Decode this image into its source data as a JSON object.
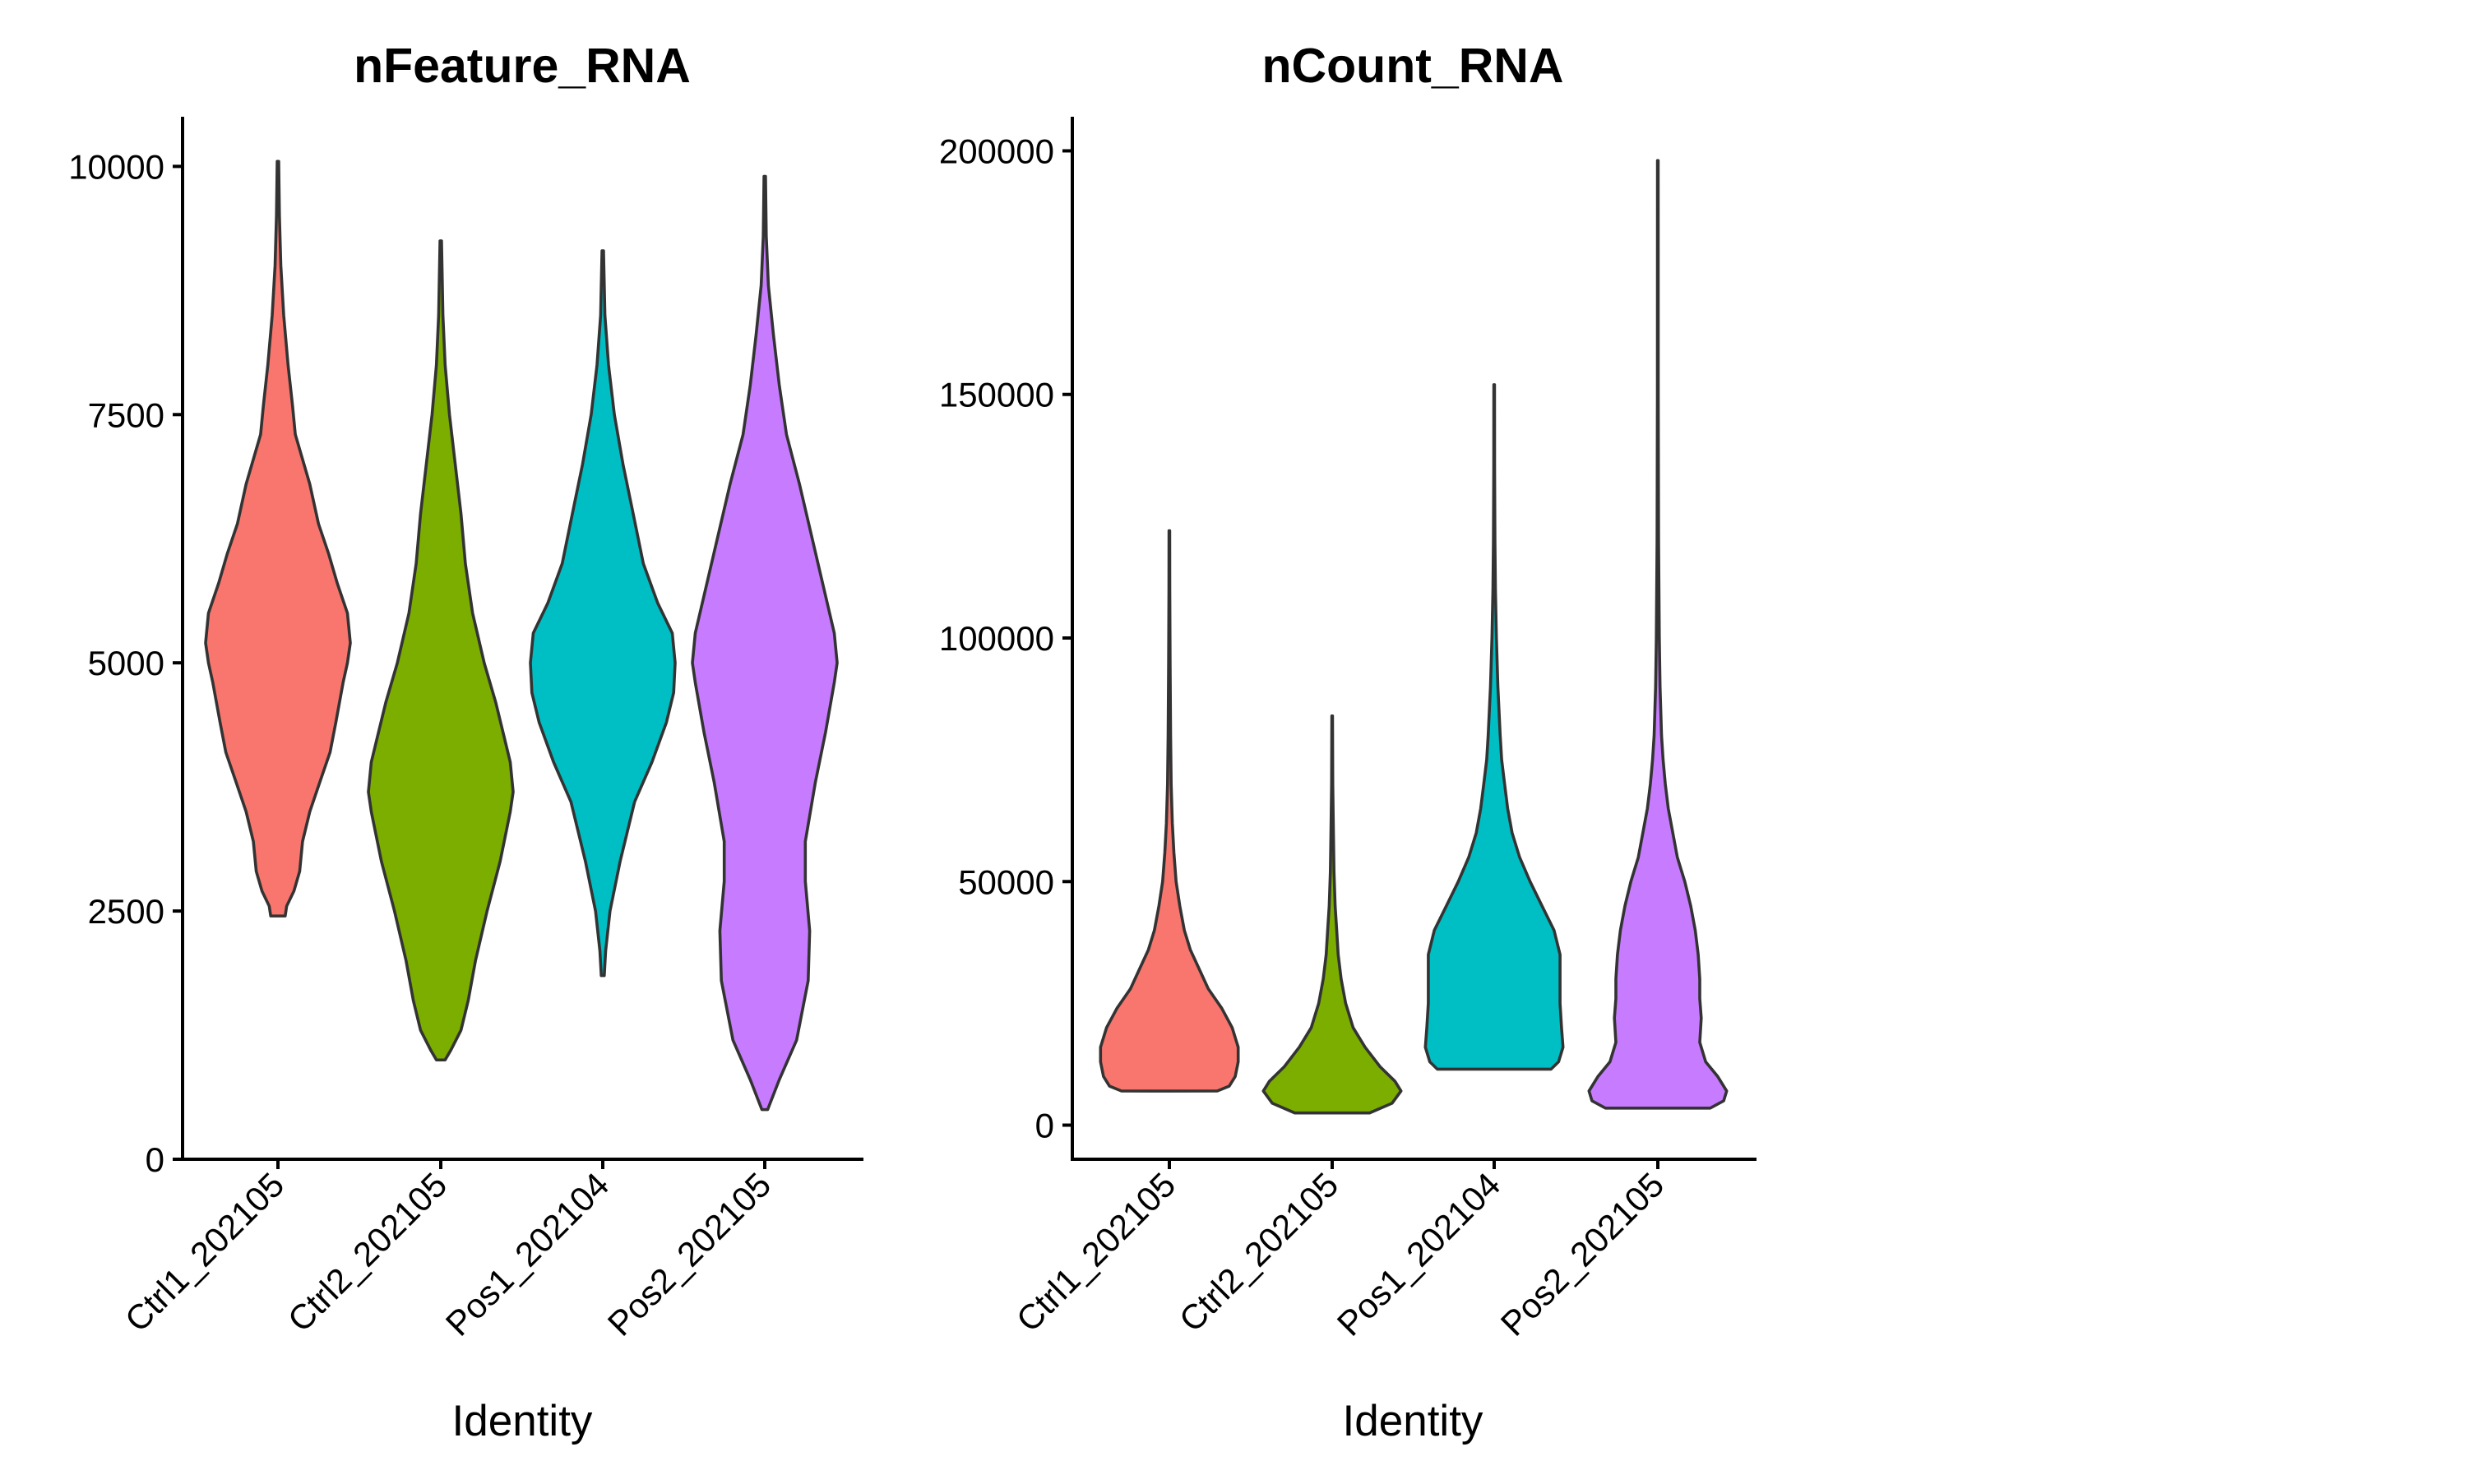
{
  "chart_data": [
    {
      "type": "violin",
      "title": "nFeature_RNA",
      "xlabel": "Identity",
      "ylabel": "",
      "ylim": [
        0,
        10500
      ],
      "yticks": [
        0,
        2500,
        5000,
        7500,
        10000
      ],
      "ytick_labels": [
        "0",
        "2500",
        "5000",
        "7500",
        "10000"
      ],
      "categories": [
        "Ctrl1_202105",
        "Ctrl2_202105",
        "Pos1_202104",
        "Pos2_202105"
      ],
      "colors": [
        "#F8766D",
        "#7CAE00",
        "#00BFC4",
        "#C77CFF"
      ],
      "legend": "none",
      "grid": false,
      "series": [
        {
          "min": 2450,
          "max": 10050,
          "density": [
            [
              2450,
              0.05
            ],
            [
              2550,
              0.06
            ],
            [
              2700,
              0.11
            ],
            [
              2900,
              0.15
            ],
            [
              3200,
              0.17
            ],
            [
              3500,
              0.22
            ],
            [
              3800,
              0.29
            ],
            [
              4100,
              0.36
            ],
            [
              4400,
              0.4
            ],
            [
              4800,
              0.45
            ],
            [
              5000,
              0.48
            ],
            [
              5200,
              0.5
            ],
            [
              5500,
              0.48
            ],
            [
              5800,
              0.41
            ],
            [
              6100,
              0.35
            ],
            [
              6400,
              0.28
            ],
            [
              6800,
              0.22
            ],
            [
              7000,
              0.18
            ],
            [
              7300,
              0.12
            ],
            [
              7600,
              0.1
            ],
            [
              8000,
              0.07
            ],
            [
              8500,
              0.04
            ],
            [
              9000,
              0.02
            ],
            [
              9500,
              0.01
            ],
            [
              10050,
              0.005
            ]
          ]
        },
        {
          "min": 1000,
          "max": 9250,
          "density": [
            [
              1000,
              0.03
            ],
            [
              1100,
              0.07
            ],
            [
              1300,
              0.14
            ],
            [
              1600,
              0.19
            ],
            [
              2000,
              0.24
            ],
            [
              2500,
              0.32
            ],
            [
              3000,
              0.41
            ],
            [
              3500,
              0.48
            ],
            [
              3700,
              0.5
            ],
            [
              4000,
              0.48
            ],
            [
              4300,
              0.43
            ],
            [
              4600,
              0.38
            ],
            [
              5000,
              0.3
            ],
            [
              5500,
              0.22
            ],
            [
              6000,
              0.17
            ],
            [
              6500,
              0.14
            ],
            [
              7000,
              0.1
            ],
            [
              7500,
              0.06
            ],
            [
              8000,
              0.03
            ],
            [
              8500,
              0.015
            ],
            [
              9250,
              0.005
            ]
          ]
        },
        {
          "min": 1850,
          "max": 9150,
          "density": [
            [
              1850,
              0.01
            ],
            [
              2100,
              0.02
            ],
            [
              2500,
              0.05
            ],
            [
              3000,
              0.12
            ],
            [
              3600,
              0.22
            ],
            [
              4000,
              0.34
            ],
            [
              4400,
              0.44
            ],
            [
              4700,
              0.49
            ],
            [
              5000,
              0.5
            ],
            [
              5300,
              0.48
            ],
            [
              5600,
              0.38
            ],
            [
              6000,
              0.28
            ],
            [
              6500,
              0.21
            ],
            [
              7000,
              0.14
            ],
            [
              7500,
              0.08
            ],
            [
              8000,
              0.04
            ],
            [
              8500,
              0.015
            ],
            [
              9150,
              0.005
            ]
          ]
        },
        {
          "min": 500,
          "max": 9900,
          "density": [
            [
              500,
              0.02
            ],
            [
              800,
              0.1
            ],
            [
              1200,
              0.22
            ],
            [
              1800,
              0.3
            ],
            [
              2300,
              0.31
            ],
            [
              2800,
              0.28
            ],
            [
              3200,
              0.28
            ],
            [
              3800,
              0.35
            ],
            [
              4300,
              0.42
            ],
            [
              4800,
              0.48
            ],
            [
              5000,
              0.5
            ],
            [
              5300,
              0.48
            ],
            [
              5800,
              0.4
            ],
            [
              6300,
              0.32
            ],
            [
              6800,
              0.24
            ],
            [
              7300,
              0.15
            ],
            [
              7800,
              0.1
            ],
            [
              8300,
              0.06
            ],
            [
              8800,
              0.025
            ],
            [
              9300,
              0.01
            ],
            [
              9900,
              0.005
            ]
          ]
        }
      ]
    },
    {
      "type": "violin",
      "title": "nCount_RNA",
      "xlabel": "Identity",
      "ylabel": "",
      "ylim": [
        -7000,
        207000
      ],
      "yticks": [
        0,
        50000,
        100000,
        150000,
        200000
      ],
      "ytick_labels": [
        "0",
        "50000",
        "100000",
        "150000",
        "200000"
      ],
      "categories": [
        "Ctrl1_202105",
        "Ctrl2_202105",
        "Pos1_202104",
        "Pos2_202105"
      ],
      "colors": [
        "#F8766D",
        "#7CAE00",
        "#00BFC4",
        "#C77CFF"
      ],
      "legend": "none",
      "grid": false,
      "series": [
        {
          "min": 7000,
          "max": 122000,
          "density": [
            [
              7000,
              0.32
            ],
            [
              8000,
              0.4
            ],
            [
              10000,
              0.44
            ],
            [
              13000,
              0.46
            ],
            [
              16000,
              0.46
            ],
            [
              20000,
              0.42
            ],
            [
              24000,
              0.35
            ],
            [
              28000,
              0.26
            ],
            [
              32000,
              0.2
            ],
            [
              36000,
              0.14
            ],
            [
              40000,
              0.1
            ],
            [
              45000,
              0.07
            ],
            [
              50000,
              0.045
            ],
            [
              56000,
              0.03
            ],
            [
              62000,
              0.02
            ],
            [
              70000,
              0.012
            ],
            [
              80000,
              0.008
            ],
            [
              95000,
              0.005
            ],
            [
              110000,
              0.003
            ],
            [
              122000,
              0.002
            ]
          ]
        },
        {
          "min": 2500,
          "max": 84000,
          "density": [
            [
              2500,
              0.25
            ],
            [
              4500,
              0.4
            ],
            [
              7000,
              0.46
            ],
            [
              9000,
              0.42
            ],
            [
              12000,
              0.32
            ],
            [
              16000,
              0.22
            ],
            [
              20000,
              0.14
            ],
            [
              25000,
              0.09
            ],
            [
              30000,
              0.06
            ],
            [
              35000,
              0.04
            ],
            [
              40000,
              0.03
            ],
            [
              45000,
              0.02
            ],
            [
              52000,
              0.012
            ],
            [
              60000,
              0.008
            ],
            [
              70000,
              0.004
            ],
            [
              84000,
              0.002
            ]
          ]
        },
        {
          "min": 11500,
          "max": 152000,
          "density": [
            [
              11500,
              0.38
            ],
            [
              13000,
              0.43
            ],
            [
              16000,
              0.46
            ],
            [
              20000,
              0.45
            ],
            [
              25000,
              0.44
            ],
            [
              30000,
              0.44
            ],
            [
              35000,
              0.44
            ],
            [
              40000,
              0.4
            ],
            [
              45000,
              0.32
            ],
            [
              50000,
              0.24
            ],
            [
              55000,
              0.17
            ],
            [
              60000,
              0.12
            ],
            [
              65000,
              0.09
            ],
            [
              70000,
              0.07
            ],
            [
              75000,
              0.05
            ],
            [
              80000,
              0.04
            ],
            [
              90000,
              0.025
            ],
            [
              100000,
              0.015
            ],
            [
              110000,
              0.008
            ],
            [
              120000,
              0.005
            ],
            [
              135000,
              0.003
            ],
            [
              152000,
              0.002
            ]
          ]
        },
        {
          "min": 3500,
          "max": 198000,
          "density": [
            [
              3500,
              0.35
            ],
            [
              5000,
              0.44
            ],
            [
              7000,
              0.46
            ],
            [
              10000,
              0.4
            ],
            [
              13000,
              0.32
            ],
            [
              17000,
              0.28
            ],
            [
              22000,
              0.29
            ],
            [
              26000,
              0.28
            ],
            [
              30000,
              0.28
            ],
            [
              35000,
              0.27
            ],
            [
              40000,
              0.25
            ],
            [
              45000,
              0.22
            ],
            [
              50000,
              0.18
            ],
            [
              55000,
              0.13
            ],
            [
              60000,
              0.1
            ],
            [
              65000,
              0.07
            ],
            [
              70000,
              0.05
            ],
            [
              75000,
              0.035
            ],
            [
              80000,
              0.025
            ],
            [
              90000,
              0.015
            ],
            [
              100000,
              0.01
            ],
            [
              120000,
              0.005
            ],
            [
              150000,
              0.003
            ],
            [
              198000,
              0.002
            ]
          ]
        }
      ]
    }
  ]
}
